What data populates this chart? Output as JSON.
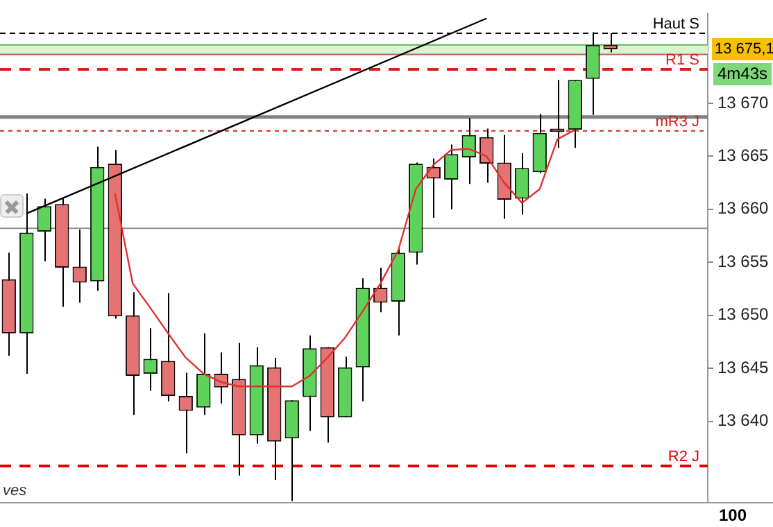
{
  "chart_data": {
    "type": "candlestick",
    "categories": [
      null,
      null,
      null,
      null,
      null,
      null,
      null,
      null,
      null,
      null,
      null,
      null,
      null,
      null,
      null,
      null,
      null,
      null,
      null,
      null,
      null,
      null,
      null,
      null,
      null,
      null,
      null,
      null,
      null,
      null,
      null,
      null,
      null,
      null,
      null,
      null,
      null,
      null,
      null,
      null
    ],
    "ohlc": [
      [
        13653.4,
        13655.9,
        13646.2,
        13648.3
      ],
      [
        13648.3,
        13661.5,
        13644.5,
        13657.8
      ],
      [
        13657.9,
        13661.0,
        13655.1,
        13660.3
      ],
      [
        13660.5,
        13661.0,
        13650.8,
        13654.5
      ],
      [
        13654.6,
        13658.1,
        13651.2,
        13653.1
      ],
      [
        13653.2,
        13665.9,
        13652.3,
        13664.0
      ],
      [
        13664.3,
        13665.6,
        13649.7,
        13649.9
      ],
      [
        13650.0,
        13652.2,
        13640.6,
        13644.3
      ],
      [
        13644.5,
        13648.8,
        13642.9,
        13645.9
      ],
      [
        13645.7,
        13652.1,
        13641.9,
        13642.4
      ],
      [
        13642.4,
        13644.6,
        13637.0,
        13641.0
      ],
      [
        13641.3,
        13648.3,
        13640.6,
        13644.5
      ],
      [
        13644.5,
        13646.5,
        13641.7,
        13643.2
      ],
      [
        13644.0,
        13647.4,
        13634.9,
        13638.7
      ],
      [
        13638.7,
        13647.0,
        13637.9,
        13645.3
      ],
      [
        13645.1,
        13646.0,
        13634.5,
        13638.1
      ],
      [
        13638.4,
        13642.0,
        13632.5,
        13642.0
      ],
      [
        13642.3,
        13648.1,
        13639.1,
        13646.9
      ],
      [
        13647.0,
        13647.0,
        13638.0,
        13640.4
      ],
      [
        13640.4,
        13646.1,
        13640.4,
        13645.1
      ],
      [
        13645.1,
        13653.5,
        13641.9,
        13652.6
      ],
      [
        13652.6,
        13654.5,
        13650.3,
        13651.2
      ],
      [
        13651.3,
        13656.4,
        13648.1,
        13655.9
      ],
      [
        13655.9,
        13664.4,
        13654.8,
        13664.3
      ],
      [
        13664.0,
        13664.8,
        13659.2,
        13662.9
      ],
      [
        13662.8,
        13666.1,
        13660.0,
        13665.2
      ],
      [
        13664.9,
        13668.6,
        13662.4,
        13667.0
      ],
      [
        13666.8,
        13667.6,
        13662.5,
        13664.3
      ],
      [
        13664.4,
        13667.0,
        13659.1,
        13660.9
      ],
      [
        13661.0,
        13665.3,
        13659.5,
        13663.9
      ],
      [
        13663.5,
        13669.0,
        13663.4,
        13667.2
      ],
      [
        13667.6,
        13672.2,
        13665.8,
        13667.3
      ],
      [
        13667.5,
        13672.2,
        13665.8,
        13672.2
      ],
      [
        13672.3,
        13676.7,
        13668.9,
        13675.5
      ],
      [
        13675.5,
        13676.6,
        13674.8,
        13675.1
      ],
      null,
      null,
      null,
      null,
      null
    ],
    "series": [
      {
        "type": "line",
        "color": "#e03030",
        "values": [
          null,
          null,
          null,
          null,
          null,
          null,
          13661.5,
          13653.0,
          13650.7,
          13648.3,
          13646.0,
          13644.5,
          13643.7,
          13643.3,
          13643.3,
          13643.3,
          13643.3,
          13644.3,
          13646.0,
          13647.9,
          13650.4,
          13653.0,
          13656.1,
          13661.9,
          13664.2,
          13665.6,
          13665.7,
          13665.0,
          13662.5,
          13660.6,
          13661.9,
          13666.6,
          13667.5,
          null,
          null,
          null,
          null,
          null,
          null,
          null
        ]
      },
      {
        "type": "line",
        "color": "#000000",
        "values": [
          null,
          13659.6,
          null,
          null,
          null,
          null,
          null,
          null,
          null,
          null,
          null,
          null,
          null,
          null,
          null,
          null,
          null,
          null,
          null,
          null,
          null,
          null,
          null,
          null,
          null,
          null,
          null,
          13678.0,
          null,
          null,
          null,
          null,
          null,
          null,
          null,
          null,
          null,
          null,
          null,
          null
        ]
      }
    ],
    "ylim": [
      13632.4,
      13678.4
    ],
    "yticks": [
      {
        "value": 13640,
        "label": "13 640"
      },
      {
        "value": 13645,
        "label": "13 645"
      },
      {
        "value": 13650,
        "label": "13 650"
      },
      {
        "value": 13655,
        "label": "13 655"
      },
      {
        "value": 13660,
        "label": "13 660"
      },
      {
        "value": 13665,
        "label": "13 665"
      },
      {
        "value": 13670,
        "label": "13 670"
      }
    ],
    "tick_labels": "y",
    "grid": false,
    "legend": false,
    "marker": "none",
    "ref_lines": [
      {
        "axis": "y",
        "value": 13676.6,
        "label": "Haut S",
        "color": "#000000",
        "line_style": "dashed"
      },
      {
        "axis": "y",
        "value": 13675.5,
        "color": "#60b060",
        "line_style": "solid"
      },
      {
        "axis": "y",
        "value": 13674.6,
        "color": "#c06060",
        "line_style": "solid"
      },
      {
        "axis": "y",
        "value": 13673.2,
        "label": "R1 S",
        "color": "#d42020",
        "line_style": "dashed"
      },
      {
        "axis": "y",
        "value": 13668.7,
        "color": "#808080",
        "line_style": "solid"
      },
      {
        "axis": "y",
        "value": 13667.4,
        "label": "mR3 J",
        "color": "#d42020",
        "line_style": "dotted"
      },
      {
        "axis": "y",
        "value": 13658.2,
        "color": "#909090",
        "line_style": "solid"
      },
      {
        "axis": "y",
        "value": 13635.8,
        "label": "R2 J",
        "color": "#e00000",
        "line_style": "dashed"
      }
    ],
    "bands": [
      {
        "axis": "y",
        "from": 13674.6,
        "to": 13675.5,
        "color": "#d8f5d0"
      }
    ],
    "annotations": [
      "13 675,1",
      "4m43s",
      "ves",
      "100"
    ]
  }
}
